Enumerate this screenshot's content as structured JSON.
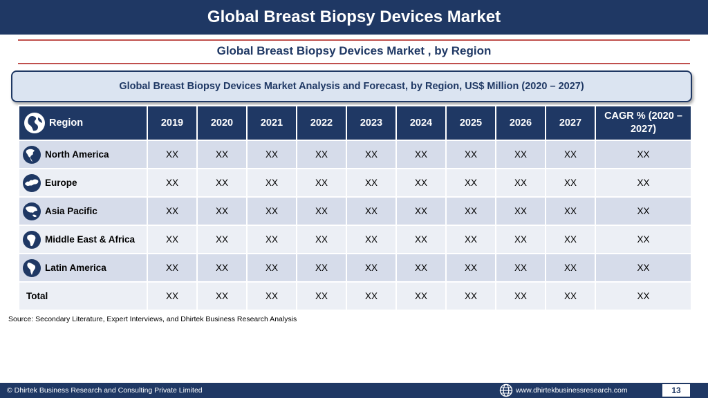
{
  "header": {
    "title": "Global Breast Biopsy Devices Market"
  },
  "subtitle": "Global Breast Biopsy Devices Market , by Region",
  "banner": "Global Breast Biopsy Devices Market  Analysis and Forecast, by Region, US$ Million (2020 – 2027)",
  "table": {
    "region_header": "Region",
    "year_headers": [
      "2019",
      "2020",
      "2021",
      "2022",
      "2023",
      "2024",
      "2025",
      "2026",
      "2027"
    ],
    "cagr_header": [
      "CAGR % (2020 –",
      "2027)"
    ],
    "rows": [
      {
        "region": "North America",
        "icon": "north-america-globe-icon",
        "values": [
          "XX",
          "XX",
          "XX",
          "XX",
          "XX",
          "XX",
          "XX",
          "XX",
          "XX"
        ],
        "cagr": "XX"
      },
      {
        "region": "Europe",
        "icon": "europe-globe-icon",
        "values": [
          "XX",
          "XX",
          "XX",
          "XX",
          "XX",
          "XX",
          "XX",
          "XX",
          "XX"
        ],
        "cagr": "XX"
      },
      {
        "region": "Asia Pacific",
        "icon": "asia-pacific-globe-icon",
        "values": [
          "XX",
          "XX",
          "XX",
          "XX",
          "XX",
          "XX",
          "XX",
          "XX",
          "XX"
        ],
        "cagr": "XX"
      },
      {
        "region": "Middle East & Africa",
        "icon": "middle-east-africa-globe-icon",
        "values": [
          "XX",
          "XX",
          "XX",
          "XX",
          "XX",
          "XX",
          "XX",
          "XX",
          "XX"
        ],
        "cagr": "XX"
      },
      {
        "region": "Latin America",
        "icon": "latin-america-globe-icon",
        "values": [
          "XX",
          "XX",
          "XX",
          "XX",
          "XX",
          "XX",
          "XX",
          "XX",
          "XX"
        ],
        "cagr": "XX"
      }
    ],
    "total": {
      "label": "Total",
      "values": [
        "XX",
        "XX",
        "XX",
        "XX",
        "XX",
        "XX",
        "XX",
        "XX",
        "XX"
      ],
      "cagr": "XX"
    }
  },
  "source": "Source: Secondary Literature, Expert Interviews, and Dhirtek Business Research Analysis",
  "footer": {
    "copyright": "© Dhirtek Business Research and Consulting Private Limited",
    "website": "www.dhirtekbusinessresearch.com",
    "page_number": "13"
  },
  "colors": {
    "primary": "#1f3864",
    "accent_rule": "#c0504d",
    "row_dark": "#d6dcea",
    "row_light": "#eceff5",
    "banner_bg": "#dbe4f1"
  }
}
